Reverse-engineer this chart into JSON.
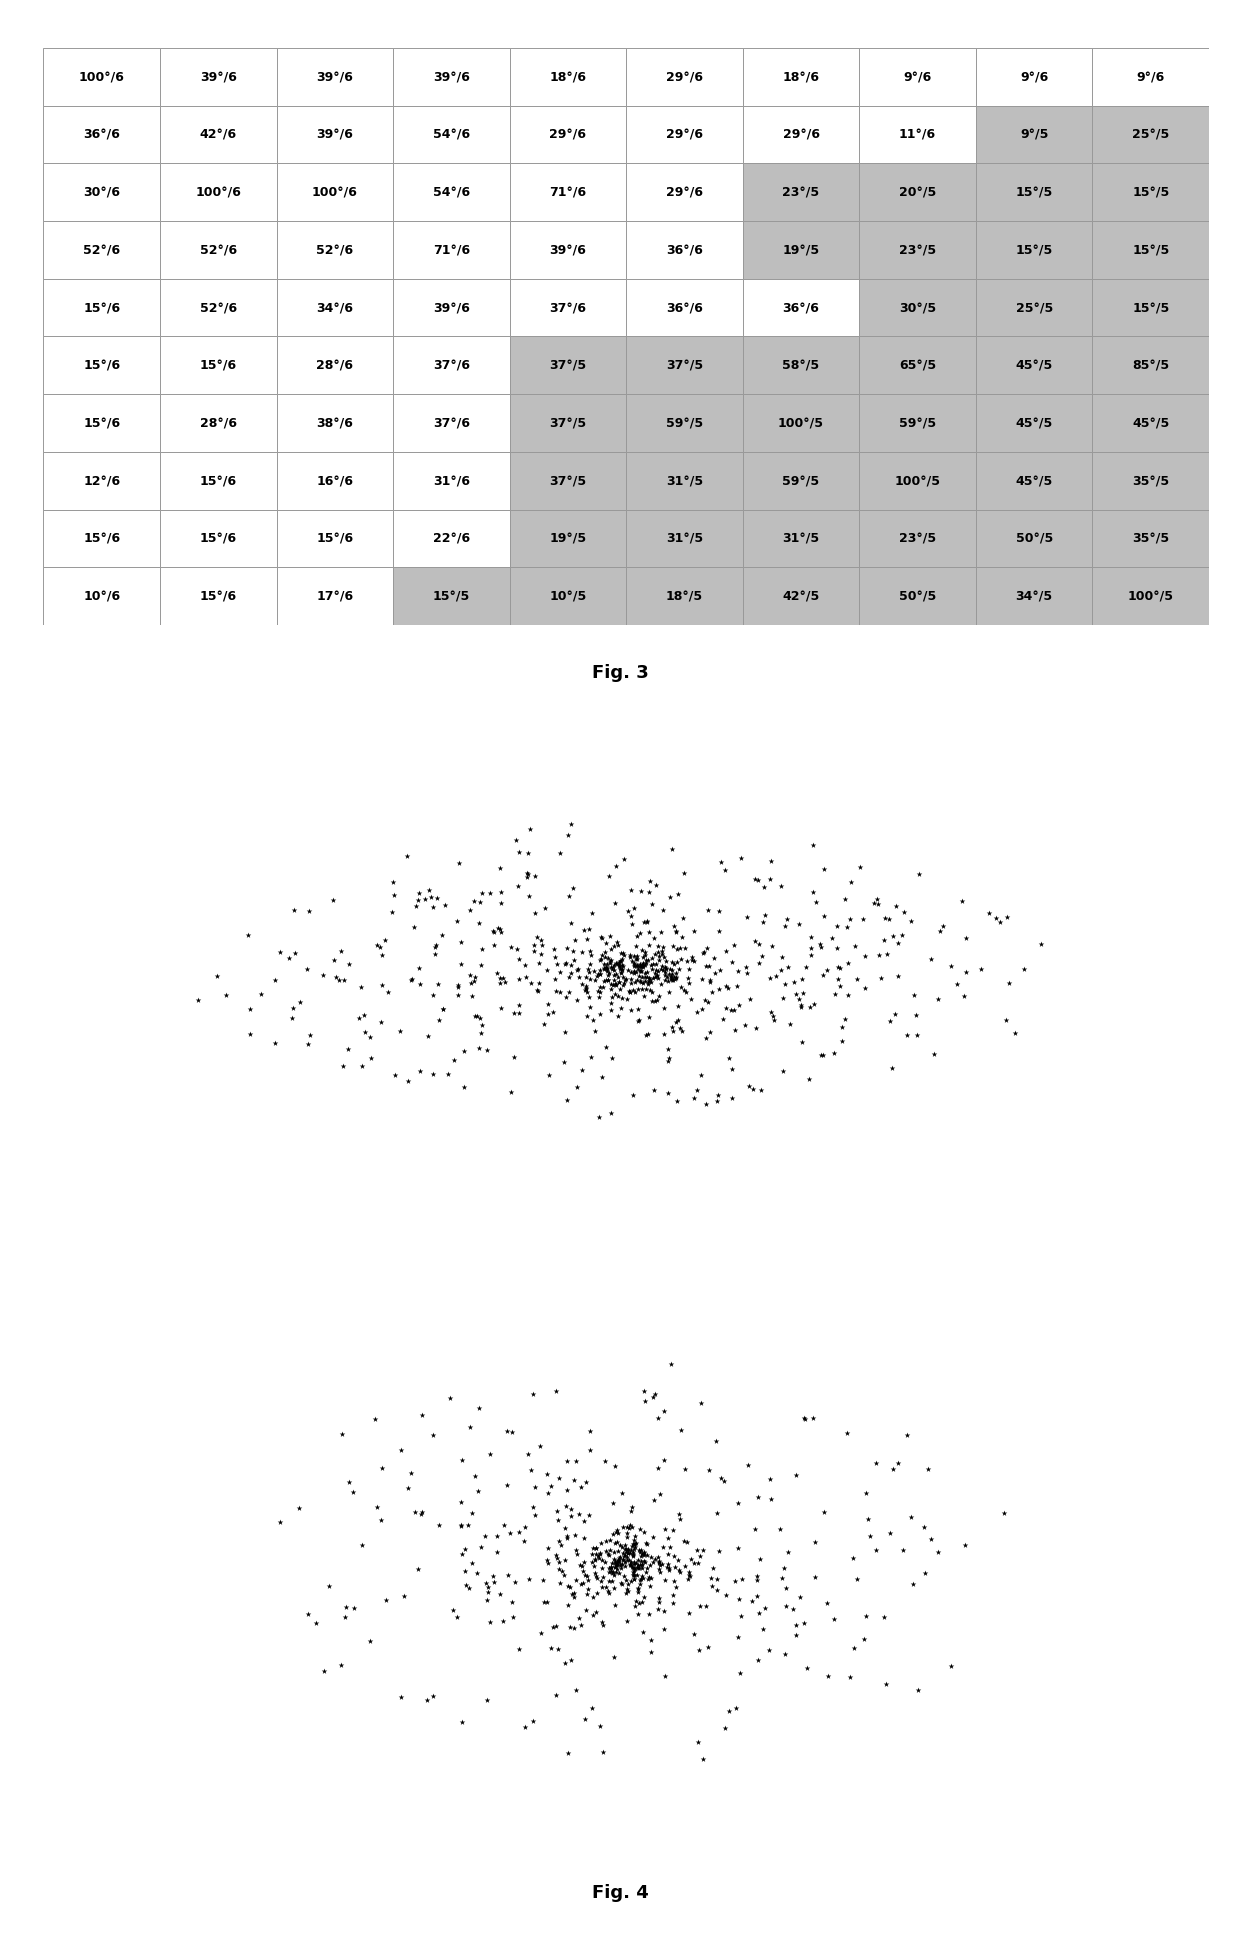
{
  "table_data": [
    [
      "100°/6",
      "39°/6",
      "39°/6",
      "39°/6",
      "18°/6",
      "29°/6",
      "18°/6",
      "9°/6",
      "9°/6",
      "9°/6"
    ],
    [
      "36°/6",
      "42°/6",
      "39°/6",
      "54°/6",
      "29°/6",
      "29°/6",
      "29°/6",
      "11°/6",
      "9°/5",
      "25°/5"
    ],
    [
      "30°/6",
      "100°/6",
      "100°/6",
      "54°/6",
      "71°/6",
      "29°/6",
      "23°/5",
      "20°/5",
      "15°/5",
      "15°/5"
    ],
    [
      "52°/6",
      "52°/6",
      "52°/6",
      "71°/6",
      "39°/6",
      "36°/6",
      "19°/5",
      "23°/5",
      "15°/5",
      "15°/5"
    ],
    [
      "15°/6",
      "52°/6",
      "34°/6",
      "39°/6",
      "37°/6",
      "36°/6",
      "36°/6",
      "30°/5",
      "25°/5",
      "15°/5"
    ],
    [
      "15°/6",
      "15°/6",
      "28°/6",
      "37°/6",
      "37°/5",
      "37°/5",
      "58°/5",
      "65°/5",
      "45°/5",
      "85°/5"
    ],
    [
      "15°/6",
      "28°/6",
      "38°/6",
      "37°/6",
      "37°/5",
      "59°/5",
      "100°/5",
      "59°/5",
      "45°/5",
      "45°/5"
    ],
    [
      "12°/6",
      "15°/6",
      "16°/6",
      "31°/6",
      "37°/5",
      "31°/5",
      "59°/5",
      "100°/5",
      "45°/5",
      "35°/5"
    ],
    [
      "15°/6",
      "15°/6",
      "15°/6",
      "22°/6",
      "19°/5",
      "31°/5",
      "31°/5",
      "23°/5",
      "50°/5",
      "35°/5"
    ],
    [
      "10°/6",
      "15°/6",
      "17°/6",
      "15°/5",
      "10°/5",
      "18°/5",
      "42°/5",
      "50°/5",
      "34°/5",
      "100°/5"
    ]
  ],
  "cell_bg": [
    [
      "white",
      "white",
      "white",
      "white",
      "white",
      "white",
      "white",
      "white",
      "white",
      "white"
    ],
    [
      "white",
      "white",
      "white",
      "white",
      "white",
      "white",
      "white",
      "white",
      "gray",
      "gray"
    ],
    [
      "white",
      "white",
      "white",
      "white",
      "white",
      "white",
      "gray",
      "gray",
      "gray",
      "gray"
    ],
    [
      "white",
      "white",
      "white",
      "white",
      "white",
      "white",
      "gray",
      "gray",
      "gray",
      "gray"
    ],
    [
      "white",
      "white",
      "white",
      "white",
      "white",
      "white",
      "white",
      "gray",
      "gray",
      "gray"
    ],
    [
      "white",
      "white",
      "white",
      "white",
      "gray",
      "gray",
      "gray",
      "gray",
      "gray",
      "gray"
    ],
    [
      "white",
      "white",
      "white",
      "white",
      "gray",
      "gray",
      "gray",
      "gray",
      "gray",
      "gray"
    ],
    [
      "white",
      "white",
      "white",
      "white",
      "gray",
      "gray",
      "gray",
      "gray",
      "gray",
      "gray"
    ],
    [
      "white",
      "white",
      "white",
      "white",
      "gray",
      "gray",
      "gray",
      "gray",
      "gray",
      "gray"
    ],
    [
      "white",
      "white",
      "white",
      "gray",
      "gray",
      "gray",
      "gray",
      "gray",
      "gray",
      "gray"
    ]
  ],
  "fig3_label": "Fig. 3",
  "fig4_label": "Fig. 4",
  "scatter1_seed": 42,
  "scatter2_seed": 123,
  "n_points1": 700,
  "n_points2": 550,
  "white_bg": "#ffffff",
  "gray_cell": "#bebebe",
  "text_color": "#000000",
  "grid_color": "#999999",
  "marker_size1": 18,
  "marker_size2": 18
}
